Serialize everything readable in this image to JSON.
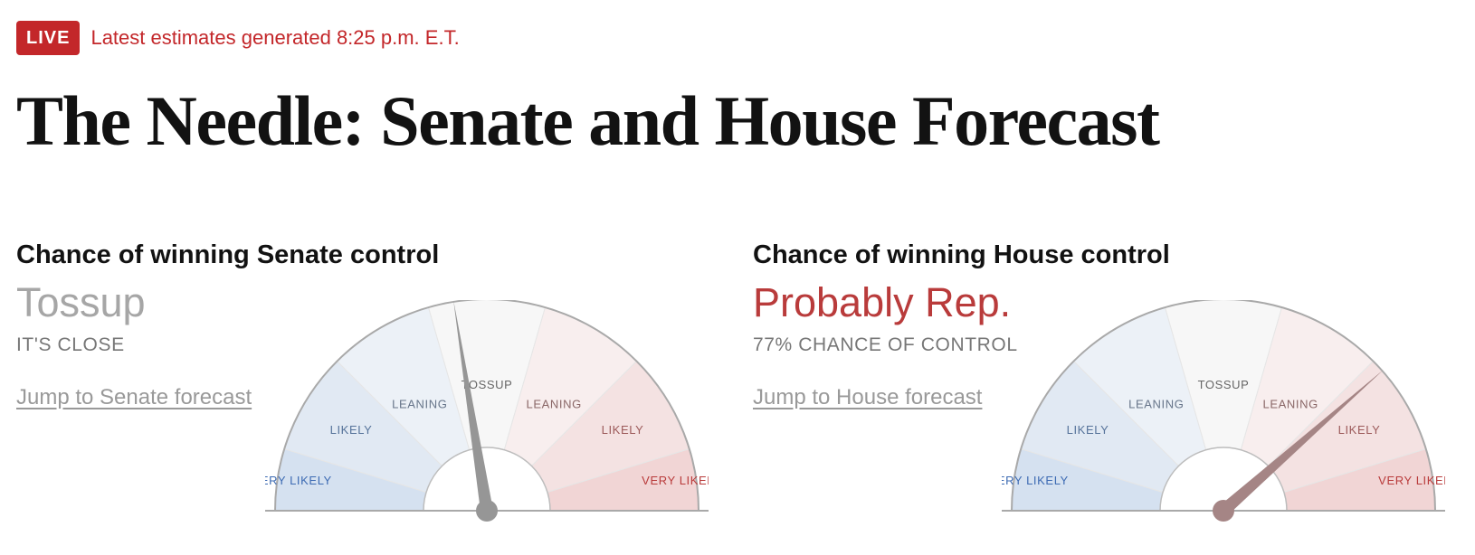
{
  "header": {
    "live_badge": "LIVE",
    "timestamp": "Latest estimates generated 8:25 p.m. E.T.",
    "title": "The Needle: Senate and House Forecast"
  },
  "colors": {
    "live_red": "#c3272a",
    "rep_red": "#b93b3b",
    "dem_blue": "#3d6bb3",
    "tossup_gray": "#a6a6a6"
  },
  "gauge_labels": {
    "dem_very_likely": "VERY LIKELY",
    "dem_likely": "LIKELY",
    "dem_leaning": "LEANING",
    "tossup": "TOSSUP",
    "rep_leaning": "LEANING",
    "rep_likely": "LIKELY",
    "rep_very_likely": "VERY LIKELY"
  },
  "senate": {
    "heading": "Chance of winning Senate control",
    "status": "Tossup",
    "subtext": "IT'S CLOSE",
    "link": "Jump to Senate forecast",
    "rep_chance": 0.45,
    "needle_color": "#969696"
  },
  "house": {
    "heading": "Chance of winning House control",
    "status": "Probably Rep.",
    "subtext": "77% CHANCE OF CONTROL",
    "link": "Jump to House forecast",
    "rep_chance": 0.77,
    "needle_color": "#a58585"
  }
}
